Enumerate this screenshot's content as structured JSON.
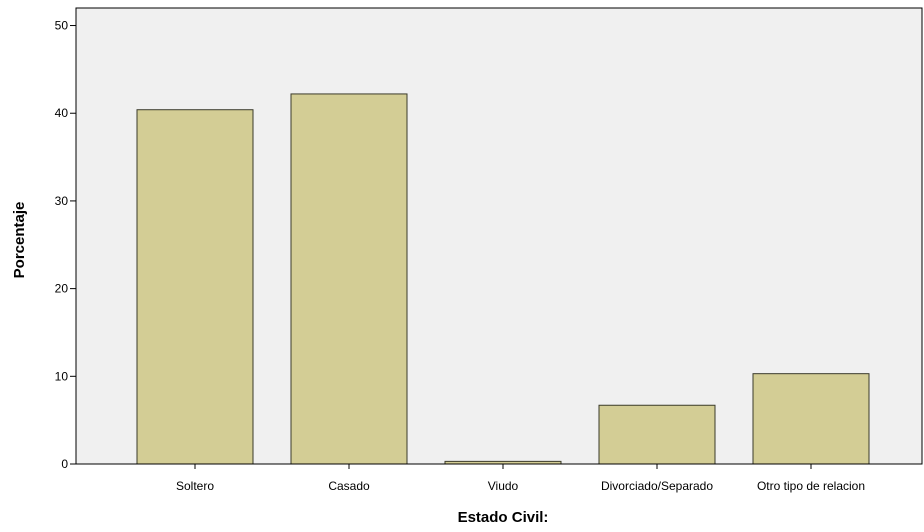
{
  "chart_data": {
    "type": "bar",
    "title": "",
    "xlabel": "Estado Civil:",
    "ylabel": "Porcentaje",
    "categories": [
      "Soltero",
      "Casado",
      "Viudo",
      "Divorciado/Separado",
      "Otro tipo de relacion"
    ],
    "values": [
      40.4,
      42.2,
      0.3,
      6.7,
      10.3
    ],
    "ylim": [
      0,
      52
    ],
    "yticks": [
      0,
      10,
      20,
      30,
      40,
      50
    ],
    "grid": false,
    "colors": {
      "plot_background": "#f0f0f0",
      "bar_fill": "#d3cd95",
      "bar_stroke": "#3a3a2a",
      "axis": "#000000"
    }
  }
}
